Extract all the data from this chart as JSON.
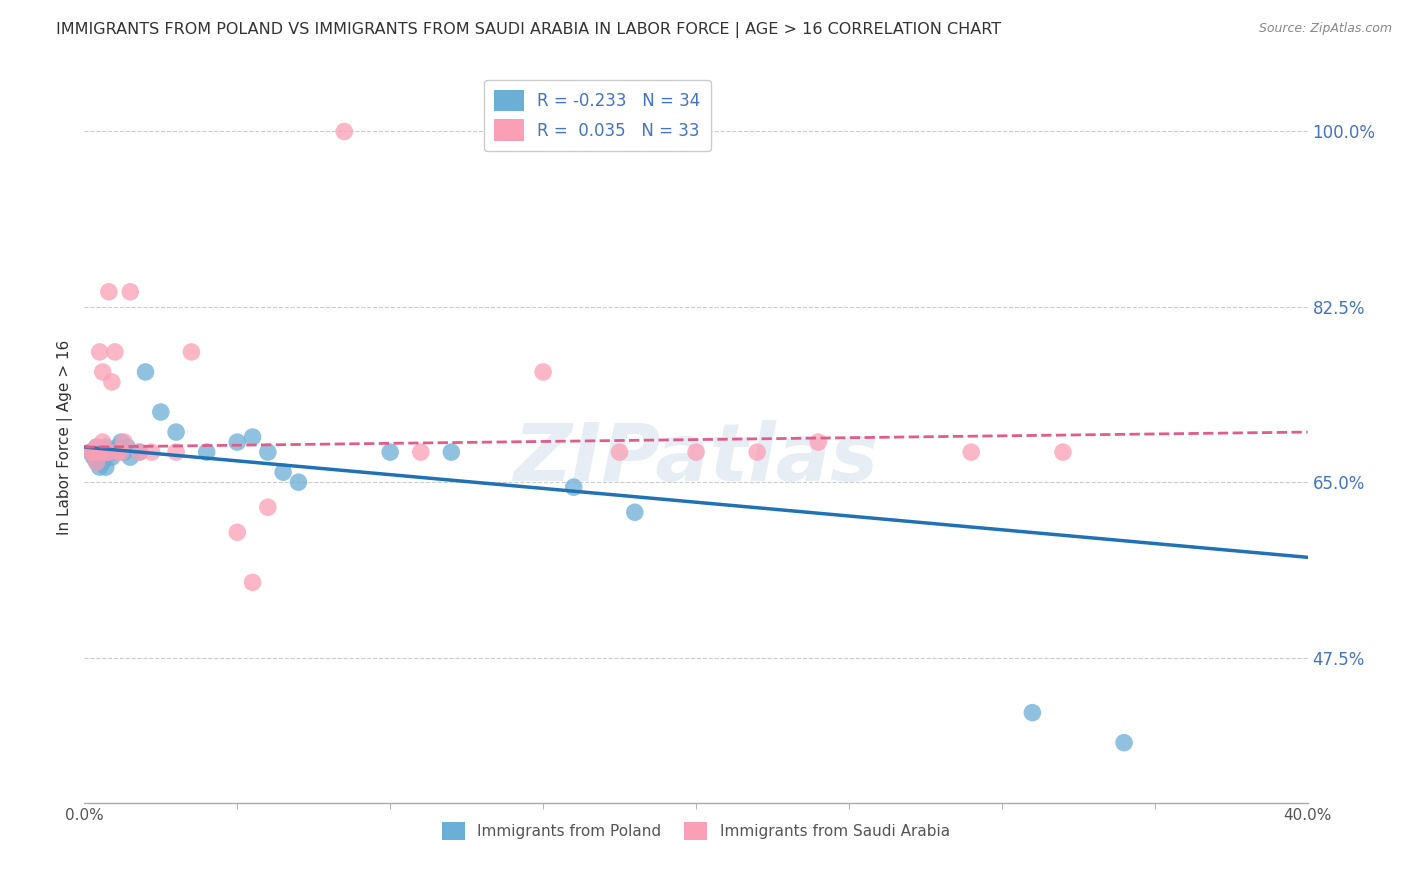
{
  "title": "IMMIGRANTS FROM POLAND VS IMMIGRANTS FROM SAUDI ARABIA IN LABOR FORCE | AGE > 16 CORRELATION CHART",
  "source": "Source: ZipAtlas.com",
  "ylabel": "In Labor Force | Age > 16",
  "ytick_values": [
    1.0,
    0.825,
    0.65,
    0.475
  ],
  "ytick_labels": [
    "100.0%",
    "82.5%",
    "65.0%",
    "47.5%"
  ],
  "xlim": [
    0.0,
    0.4
  ],
  "ylim": [
    0.33,
    1.06
  ],
  "legend_r_blue": "-0.233",
  "legend_n_blue": "34",
  "legend_r_pink": "0.035",
  "legend_n_pink": "33",
  "color_blue": "#6baed6",
  "color_pink": "#fa9fb5",
  "trendline_blue_color": "#2171b5",
  "trendline_pink_color": "#e05c8a",
  "watermark": "ZIPatlas",
  "blue_scatter_x": [
    0.002,
    0.003,
    0.004,
    0.004,
    0.005,
    0.005,
    0.006,
    0.006,
    0.007,
    0.007,
    0.008,
    0.009,
    0.01,
    0.011,
    0.012,
    0.013,
    0.014,
    0.015,
    0.018,
    0.02,
    0.025,
    0.03,
    0.04,
    0.05,
    0.055,
    0.06,
    0.065,
    0.07,
    0.1,
    0.12,
    0.16,
    0.18,
    0.31,
    0.34
  ],
  "blue_scatter_y": [
    0.68,
    0.675,
    0.685,
    0.67,
    0.68,
    0.665,
    0.68,
    0.67,
    0.685,
    0.665,
    0.68,
    0.675,
    0.68,
    0.685,
    0.69,
    0.68,
    0.685,
    0.675,
    0.68,
    0.76,
    0.72,
    0.7,
    0.68,
    0.69,
    0.695,
    0.68,
    0.66,
    0.65,
    0.68,
    0.68,
    0.645,
    0.62,
    0.42,
    0.39
  ],
  "pink_scatter_x": [
    0.002,
    0.003,
    0.004,
    0.004,
    0.005,
    0.005,
    0.006,
    0.006,
    0.007,
    0.008,
    0.008,
    0.009,
    0.01,
    0.011,
    0.012,
    0.013,
    0.015,
    0.018,
    0.022,
    0.03,
    0.035,
    0.05,
    0.055,
    0.06,
    0.085,
    0.11,
    0.15,
    0.175,
    0.2,
    0.22,
    0.24,
    0.29,
    0.32
  ],
  "pink_scatter_y": [
    0.68,
    0.68,
    0.685,
    0.67,
    0.68,
    0.78,
    0.69,
    0.76,
    0.68,
    0.68,
    0.84,
    0.75,
    0.78,
    0.68,
    0.68,
    0.69,
    0.84,
    0.68,
    0.68,
    0.68,
    0.78,
    0.6,
    0.55,
    0.625,
    1.0,
    0.68,
    0.76,
    0.68,
    0.68,
    0.68,
    0.69,
    0.68,
    0.68
  ],
  "background_color": "#ffffff",
  "grid_color": "#cccccc",
  "title_color": "#333333"
}
